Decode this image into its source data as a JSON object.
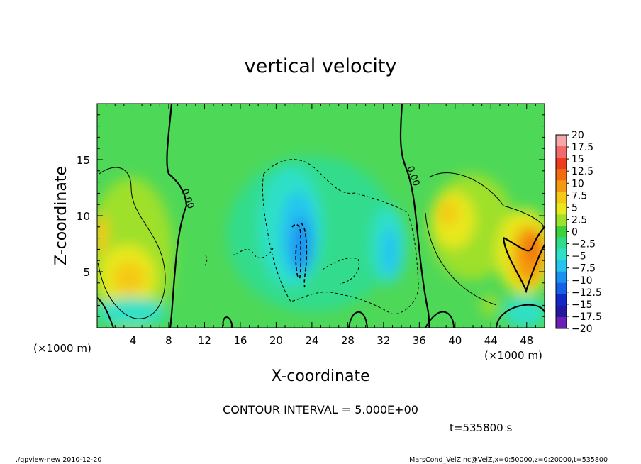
{
  "chart_data": {
    "type": "heatmap",
    "title": "vertical velocity",
    "xlabel": "X-coordinate",
    "ylabel": "Z-coordinate",
    "x_unit_left": "(×1000 m)",
    "x_unit_right": "(×1000 m)",
    "xlim": [
      0,
      50
    ],
    "ylim": [
      0,
      20
    ],
    "x_ticks": [
      4,
      8,
      12,
      16,
      20,
      24,
      28,
      32,
      36,
      40,
      44,
      48
    ],
    "x_tick_labels": [
      "4",
      "8",
      "12",
      "16",
      "20",
      "24",
      "28",
      "32",
      "36",
      "40",
      "44",
      "48"
    ],
    "y_ticks": [
      5,
      10,
      15
    ],
    "y_tick_labels": [
      "5",
      "10",
      "15"
    ],
    "zero_contour_label": "0.00",
    "colorbar": {
      "levels": [
        20,
        17.5,
        15,
        12.5,
        10,
        7.5,
        5,
        2.5,
        0,
        -2.5,
        -5,
        -7.5,
        -10,
        -12.5,
        -15,
        -17.5,
        -20
      ],
      "labels": [
        "20",
        "17.5",
        "15",
        "12.5",
        "10",
        "7.5",
        "5",
        "2.5",
        "0",
        "−2.5",
        "−5",
        "−7.5",
        "−10",
        "−12.5",
        "−15",
        "−17.5",
        "−20"
      ],
      "colors": [
        "#f4a8a8",
        "#f26a6a",
        "#ee3c20",
        "#f36a10",
        "#f49a10",
        "#f5c816",
        "#e8e81a",
        "#9ee02a",
        "#3cd23c",
        "#30dc8c",
        "#2ee0c8",
        "#28c4f0",
        "#1a90f0",
        "#1660e8",
        "#1428c8",
        "#2418a0",
        "#6a20b4"
      ]
    },
    "contour_interval": "CONTOUR INTERVAL = 5.000E+00",
    "time_label": "t=535800 s",
    "footer_left": "./gpview-new  2010-12-20",
    "footer_right": "MarsCond_VelZ.nc@VelZ,x=0:50000,z=0:20000,t=535800"
  }
}
